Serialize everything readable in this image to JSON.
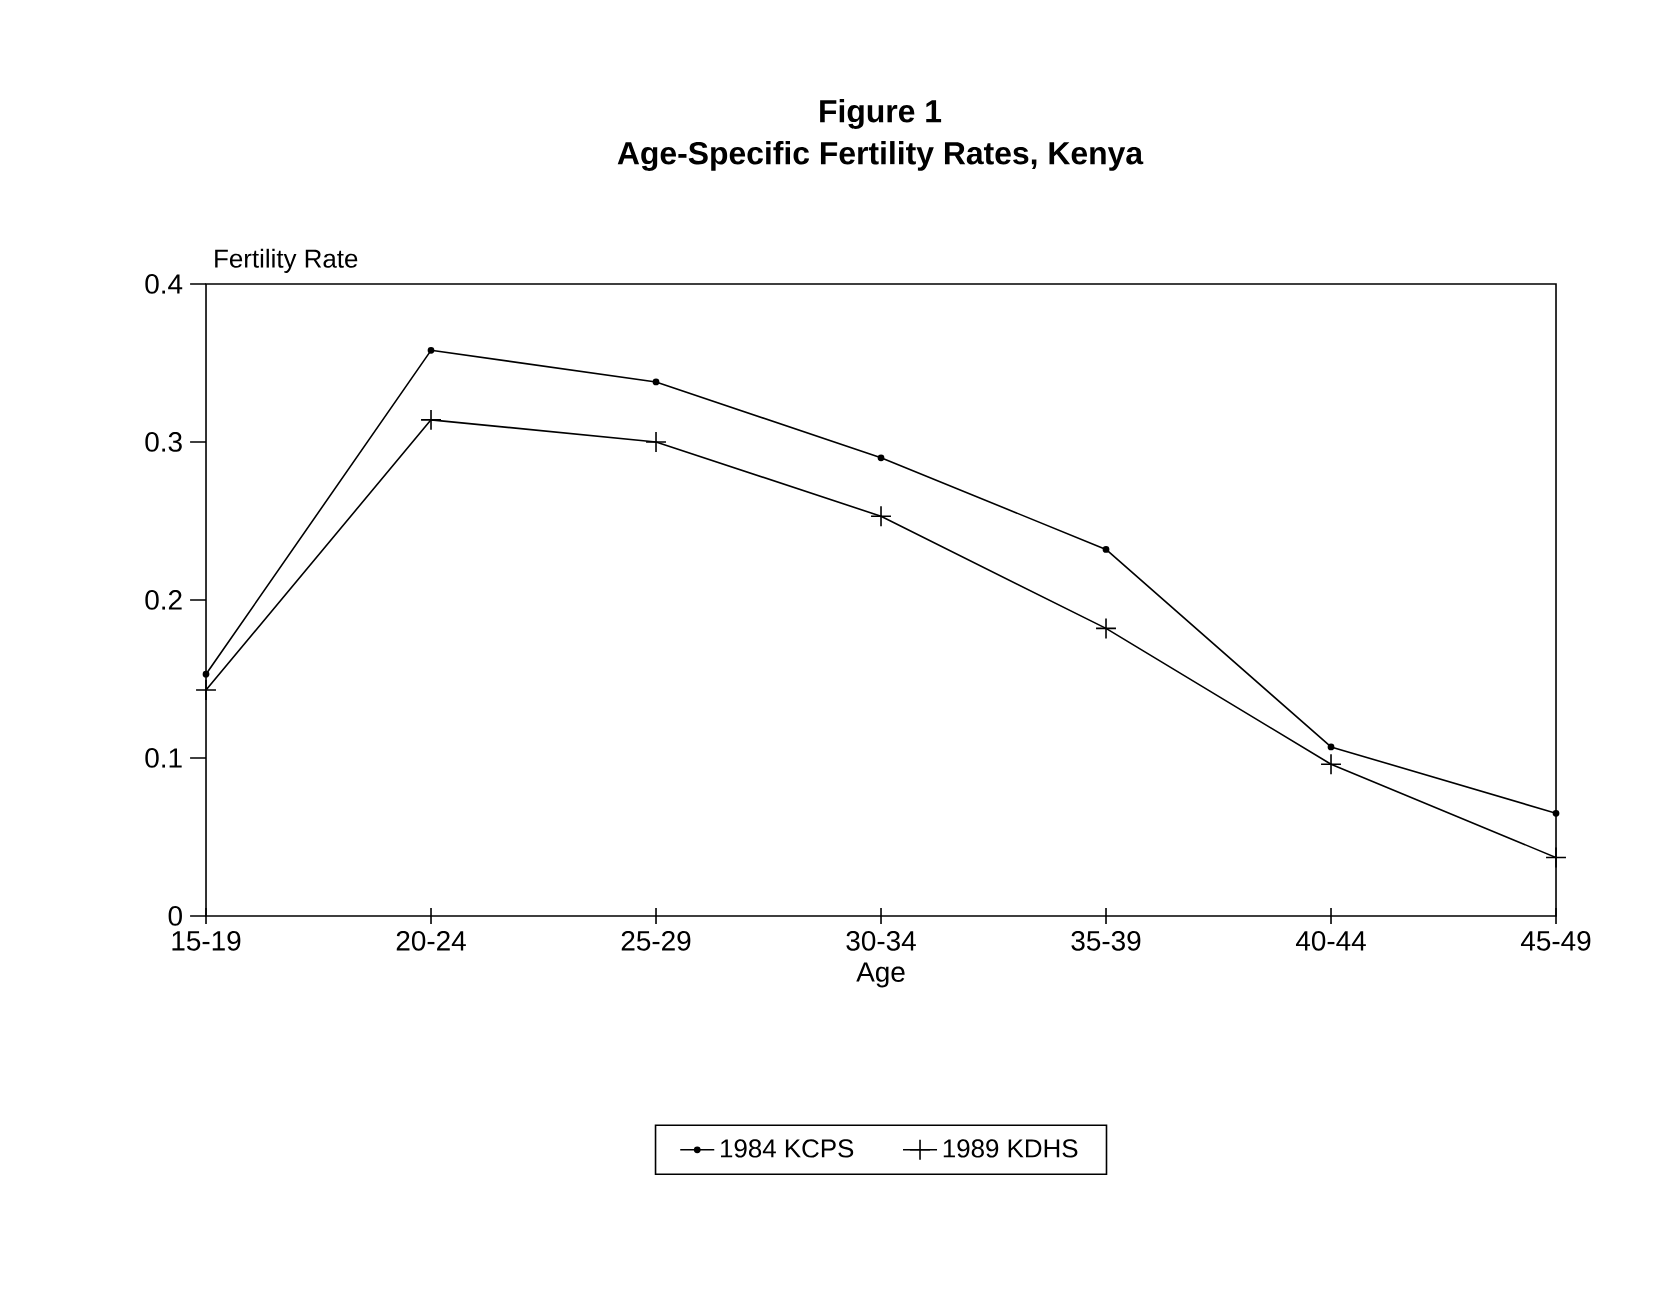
{
  "chart_data": {
    "type": "line",
    "title": "Figure 1",
    "subtitle": "Age-Specific Fertility Rates, Kenya",
    "xlabel": "Age",
    "ylabel": "Fertility Rate",
    "categories": [
      "15-19",
      "20-24",
      "25-29",
      "30-34",
      "35-39",
      "40-44",
      "45-49"
    ],
    "series": [
      {
        "name": "1984 KCPS",
        "color": "#000000",
        "marker": "circle",
        "values": [
          0.153,
          0.358,
          0.338,
          0.29,
          0.232,
          0.107,
          0.065
        ]
      },
      {
        "name": "1989 KDHS",
        "color": "#000000",
        "marker": "cross",
        "values": [
          0.143,
          0.314,
          0.3,
          0.253,
          0.182,
          0.096,
          0.037
        ]
      }
    ],
    "ylim": [
      0,
      0.4
    ],
    "yticks": [
      0,
      0.1,
      0.2,
      0.3,
      0.4
    ],
    "grid": false,
    "legend": "bottom",
    "line_style": "solid"
  }
}
